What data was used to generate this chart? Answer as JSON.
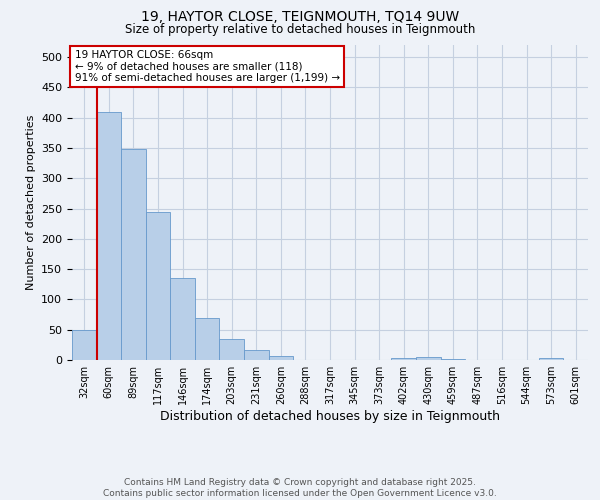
{
  "title": "19, HAYTOR CLOSE, TEIGNMOUTH, TQ14 9UW",
  "subtitle": "Size of property relative to detached houses in Teignmouth",
  "xlabel": "Distribution of detached houses by size in Teignmouth",
  "ylabel": "Number of detached properties",
  "footer_line1": "Contains HM Land Registry data © Crown copyright and database right 2025.",
  "footer_line2": "Contains public sector information licensed under the Open Government Licence v3.0.",
  "bin_labels": [
    "32sqm",
    "60sqm",
    "89sqm",
    "117sqm",
    "146sqm",
    "174sqm",
    "203sqm",
    "231sqm",
    "260sqm",
    "288sqm",
    "317sqm",
    "345sqm",
    "373sqm",
    "402sqm",
    "430sqm",
    "459sqm",
    "487sqm",
    "516sqm",
    "544sqm",
    "573sqm",
    "601sqm"
  ],
  "bar_values": [
    50,
    410,
    348,
    245,
    135,
    70,
    35,
    17,
    7,
    0,
    0,
    0,
    0,
    4,
    5,
    2,
    0,
    0,
    0,
    3,
    0
  ],
  "bar_color": "#b8cfe8",
  "bar_edge_color": "#6699cc",
  "annotation_line1": "19 HAYTOR CLOSE: 66sqm",
  "annotation_line2": "← 9% of detached houses are smaller (118)",
  "annotation_line3": "91% of semi-detached houses are larger (1,199) →",
  "annotation_box_facecolor": "#ffffff",
  "annotation_box_edgecolor": "#cc0000",
  "vline_color": "#cc0000",
  "vline_index": 1,
  "ylim": [
    0,
    520
  ],
  "yticks": [
    0,
    50,
    100,
    150,
    200,
    250,
    300,
    350,
    400,
    450,
    500
  ],
  "background_color": "#eef2f8",
  "grid_color": "#c5d0e0",
  "title_fontsize": 10,
  "subtitle_fontsize": 8.5,
  "ylabel_fontsize": 8,
  "xlabel_fontsize": 9,
  "footer_fontsize": 6.5
}
